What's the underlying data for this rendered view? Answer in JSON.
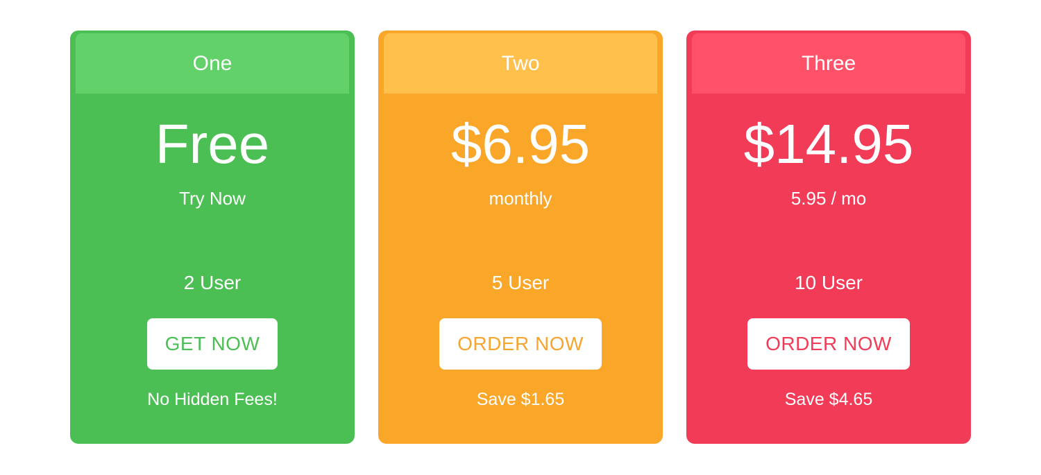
{
  "page": {
    "background": "#ffffff"
  },
  "cards": [
    {
      "title": "One",
      "price": "Free",
      "subtitle": "Try Now",
      "users": "2 User",
      "button_label": "GET NOW",
      "footnote": "No Hidden Fees!",
      "colors": {
        "body": "#4bbf53",
        "header": "#62d16a",
        "button_text": "#4bbf53"
      }
    },
    {
      "title": "Two",
      "price": "$6.95",
      "subtitle": "monthly",
      "users": "5 User",
      "button_label": "ORDER NOW",
      "footnote": "Save $1.65",
      "colors": {
        "body": "#faa629",
        "header": "#ffc14c",
        "button_text": "#f7a52e"
      }
    },
    {
      "title": "Three",
      "price": "$14.95",
      "subtitle": "5.95 / mo",
      "users": "10 User",
      "button_label": "ORDER NOW",
      "footnote": "Save $4.65",
      "colors": {
        "body": "#f23b57",
        "header": "#ff5168",
        "button_text": "#f23b57"
      }
    }
  ]
}
